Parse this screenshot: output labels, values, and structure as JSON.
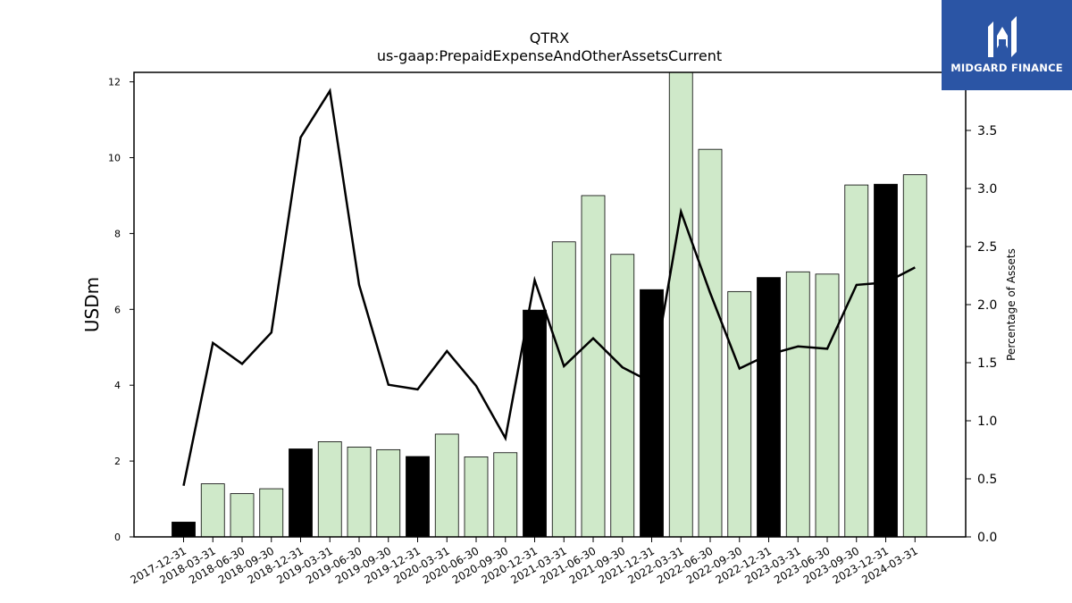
{
  "chart_data": {
    "type": "bar",
    "title": "QTRX",
    "subtitle": "us-gaap:PrepaidExpenseAndOtherAssetsCurrent",
    "ylabel": "USDm",
    "y2label": "Percentage of Assets",
    "ylim": [
      0,
      12.25
    ],
    "y2lim": [
      0,
      4.0
    ],
    "yticks": [
      "0",
      "2",
      "4",
      "6",
      "8",
      "10",
      "12"
    ],
    "y2ticks": [
      "0.0",
      "0.5",
      "1.0",
      "1.5",
      "2.0",
      "2.5",
      "3.0",
      "3.5"
    ],
    "categories": [
      "2017-12-31",
      "2018-03-31",
      "2018-06-30",
      "2018-09-30",
      "2018-12-31",
      "2019-03-31",
      "2019-06-30",
      "2019-09-30",
      "2019-12-31",
      "2020-03-31",
      "2020-06-30",
      "2020-09-30",
      "2020-12-31",
      "2021-03-31",
      "2021-06-30",
      "2021-09-30",
      "2021-12-31",
      "2022-03-31",
      "2022-06-30",
      "2022-09-30",
      "2022-12-31",
      "2023-03-31",
      "2023-06-30",
      "2023-09-30",
      "2023-12-31",
      "2024-03-31"
    ],
    "series": [
      {
        "kind": "bar",
        "values": [
          0.39,
          1.4,
          1.14,
          1.27,
          2.32,
          2.51,
          2.37,
          2.3,
          2.12,
          2.71,
          2.11,
          2.22,
          5.98,
          7.78,
          9.0,
          7.45,
          6.52,
          12.25,
          10.22,
          6.47,
          6.84,
          6.99,
          6.93,
          9.28,
          9.3,
          9.55
        ],
        "annual": [
          true,
          false,
          false,
          false,
          true,
          false,
          false,
          false,
          true,
          false,
          false,
          false,
          true,
          false,
          false,
          false,
          true,
          false,
          false,
          false,
          true,
          false,
          false,
          false,
          true,
          false
        ],
        "annual_color": "#000000",
        "quarter_color": "#cfe9c9"
      },
      {
        "kind": "line",
        "axis": "right",
        "values": [
          0.44,
          1.67,
          1.49,
          1.76,
          3.44,
          3.84,
          2.17,
          1.31,
          1.27,
          1.6,
          1.3,
          0.85,
          2.21,
          1.47,
          1.71,
          1.46,
          1.33,
          2.8,
          2.1,
          1.45,
          1.57,
          1.64,
          1.62,
          2.17,
          2.19,
          2.32
        ],
        "color": "#000000"
      }
    ]
  },
  "logo": {
    "text": "MIDGARD FINANCE"
  }
}
